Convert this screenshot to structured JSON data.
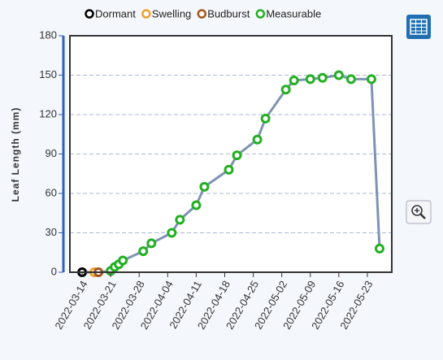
{
  "chart_data": {
    "type": "line",
    "y_label": "Leaf Length (mm)",
    "line_color": "#7f93b3",
    "ylim": [
      0,
      180
    ],
    "yticks": [
      0,
      30,
      60,
      90,
      120,
      150,
      180
    ],
    "grid": true,
    "xlim": [
      "2022-03-11",
      "2022-05-29"
    ],
    "xticks": [
      "2022-03-14",
      "2022-03-21",
      "2022-03-28",
      "2022-04-04",
      "2022-04-11",
      "2022-04-18",
      "2022-04-25",
      "2022-05-02",
      "2022-05-09",
      "2022-05-16",
      "2022-05-23"
    ],
    "series": [
      {
        "name": "Dormant",
        "color": "#000000",
        "x": [
          "2022-03-14"
        ],
        "values": [
          0
        ]
      },
      {
        "name": "Swelling",
        "color": "#f0a030",
        "x": [
          "2022-03-17"
        ],
        "values": [
          0
        ]
      },
      {
        "name": "Budburst",
        "color": "#a0581c",
        "x": [
          "2022-03-18"
        ],
        "values": [
          0
        ]
      },
      {
        "name": "Measurable",
        "color": "#22b022",
        "x": [
          "2022-03-21",
          "2022-03-22",
          "2022-03-23",
          "2022-03-24",
          "2022-03-29",
          "2022-03-31",
          "2022-04-05",
          "2022-04-07",
          "2022-04-11",
          "2022-04-13",
          "2022-04-19",
          "2022-04-21",
          "2022-04-26",
          "2022-04-28",
          "2022-05-03",
          "2022-05-05",
          "2022-05-09",
          "2022-05-12",
          "2022-05-16",
          "2022-05-19",
          "2022-05-24",
          "2022-05-26"
        ],
        "values": [
          1,
          4,
          6,
          9,
          16,
          22,
          30,
          40,
          51,
          65,
          78,
          89,
          101,
          117,
          139,
          146,
          147,
          148,
          150,
          147,
          147,
          18
        ]
      }
    ]
  }
}
